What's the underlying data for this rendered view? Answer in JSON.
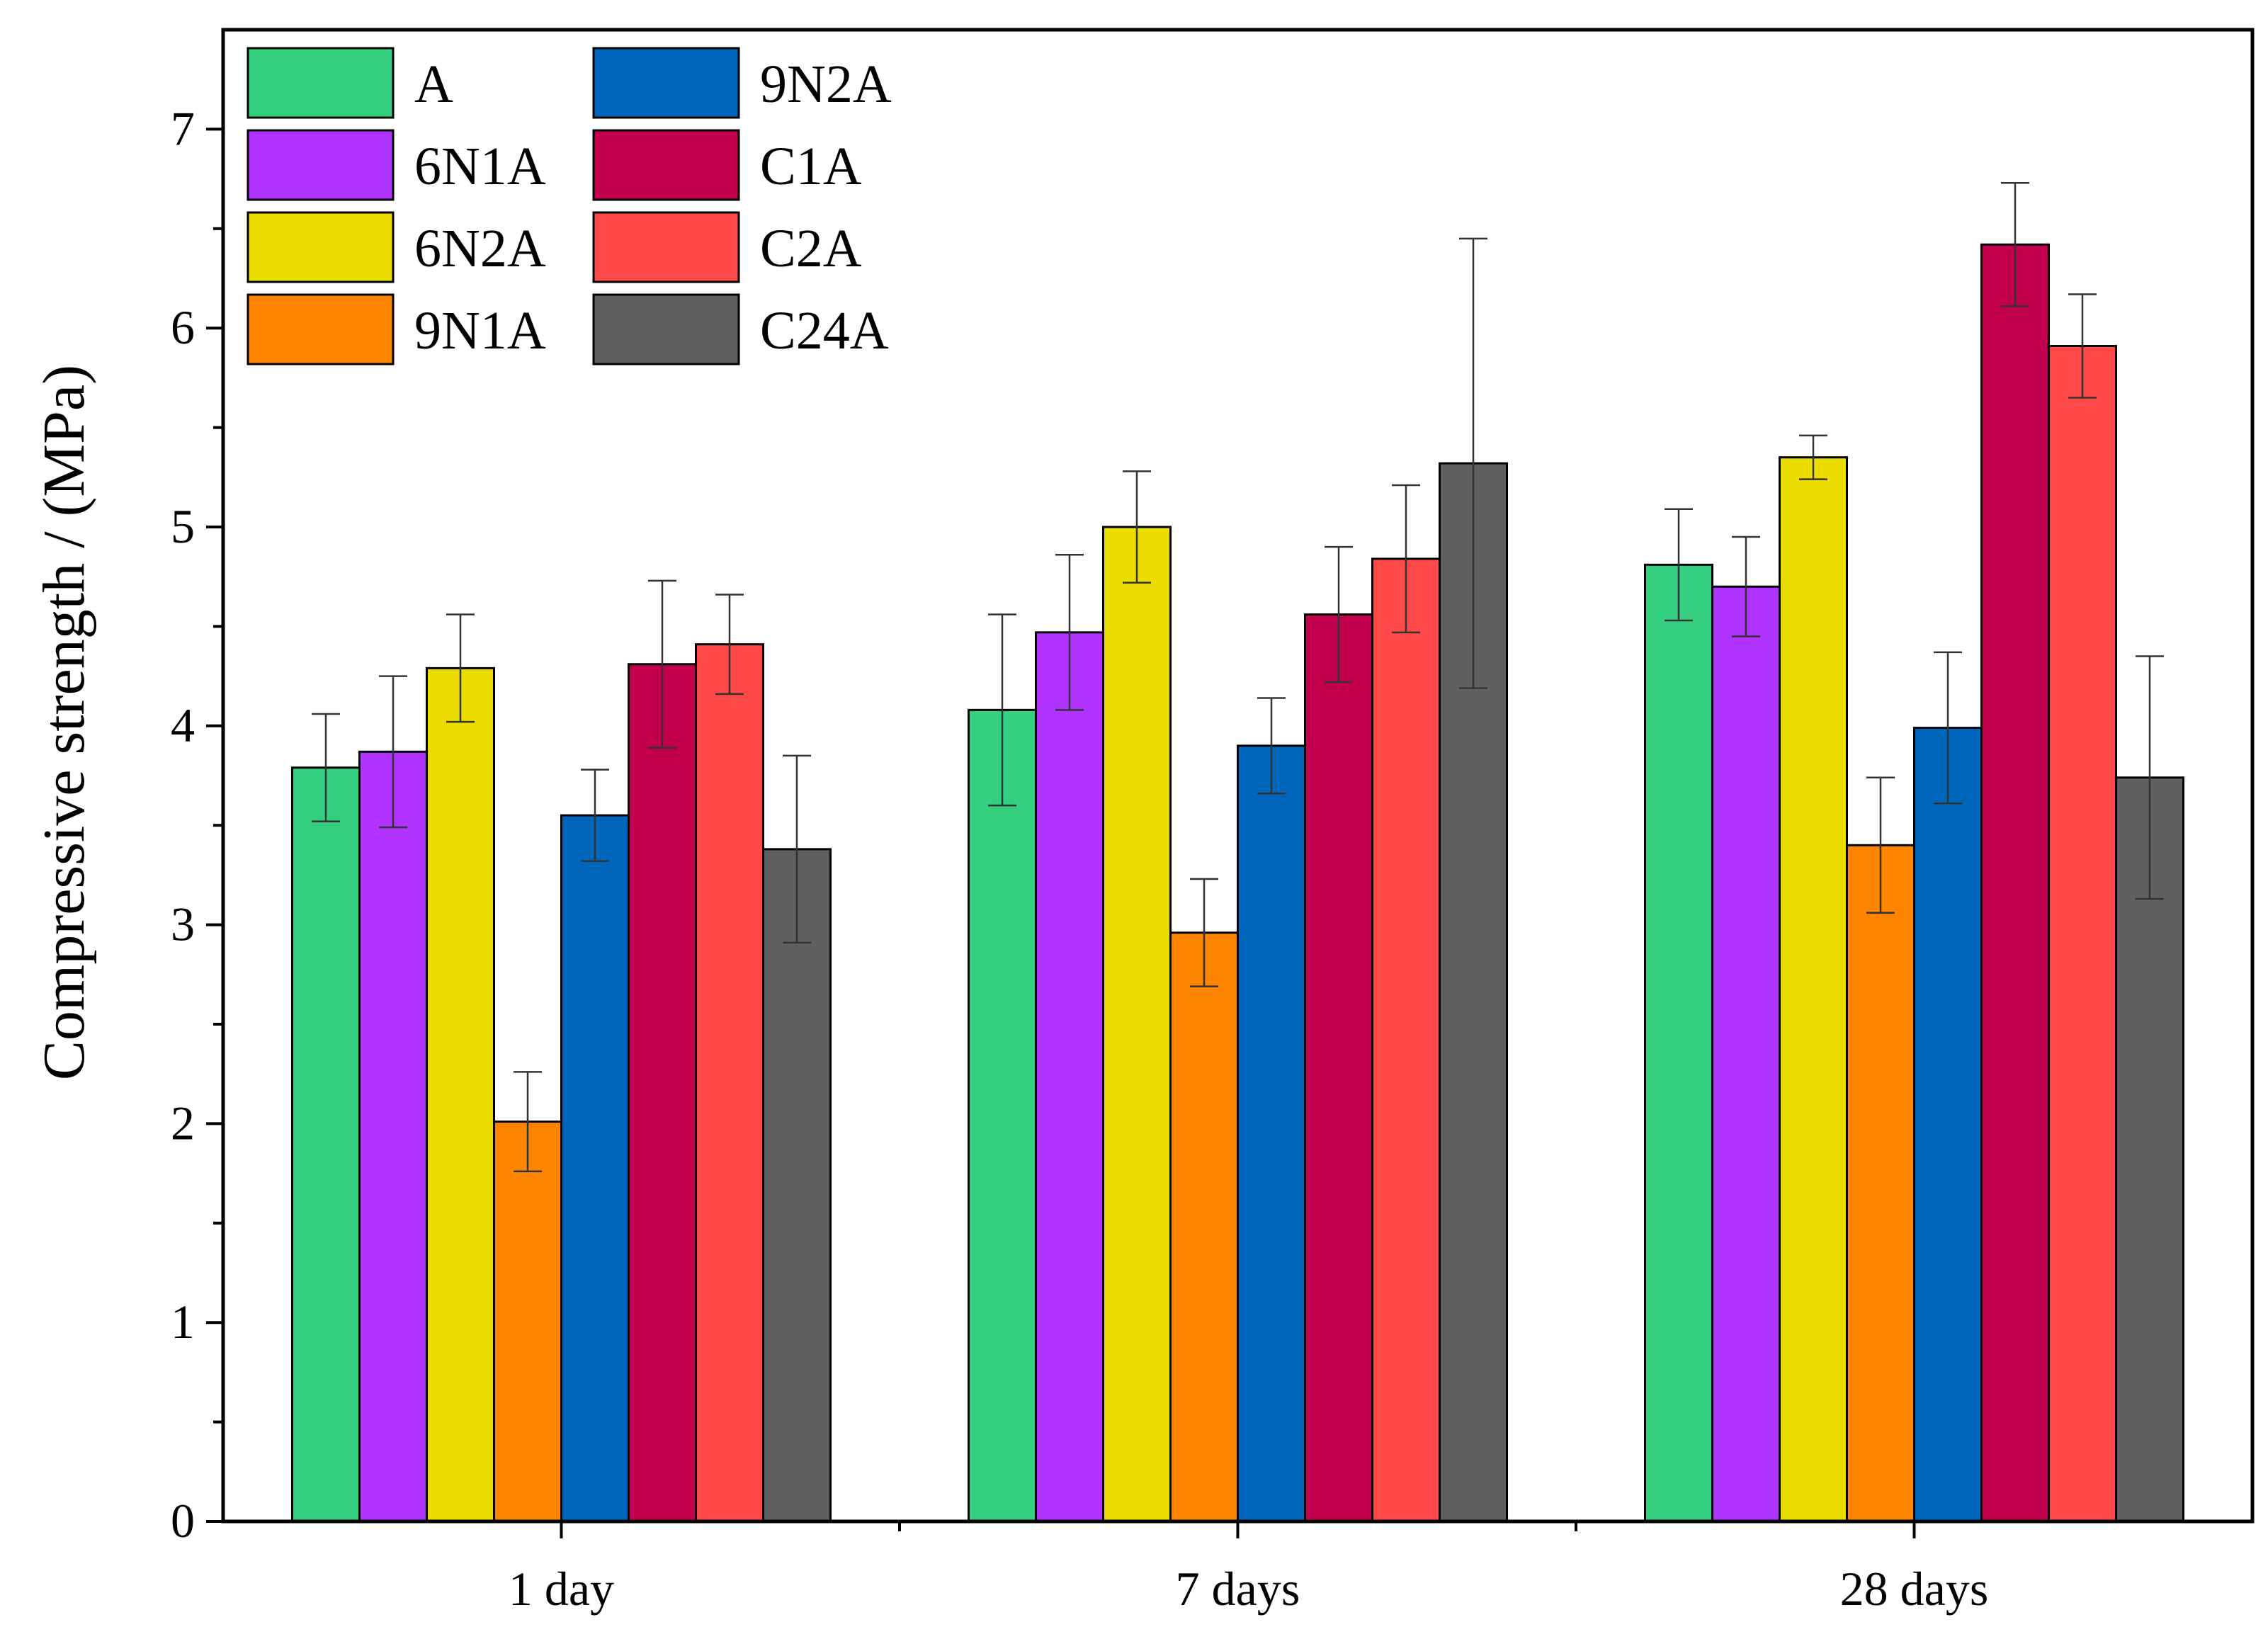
{
  "chart_data": {
    "type": "bar",
    "title": "",
    "xlabel": "",
    "ylabel": "Compressive strength / (MPa)",
    "ylim": [
      0,
      7.5
    ],
    "yticks": [
      0,
      1,
      2,
      3,
      4,
      5,
      6,
      7
    ],
    "categories": [
      "1 day",
      "7 days",
      "28 days"
    ],
    "legend_position": "top-left",
    "series": [
      {
        "name": "A",
        "color": "#35D07F",
        "values": [
          3.79,
          4.08,
          4.81
        ],
        "errors": [
          0.27,
          0.48,
          0.28
        ]
      },
      {
        "name": "6N1A",
        "color": "#B133FF",
        "values": [
          3.87,
          4.47,
          4.7
        ],
        "errors": [
          0.38,
          0.39,
          0.25
        ]
      },
      {
        "name": "6N2A",
        "color": "#ECDD00",
        "values": [
          4.29,
          5.0,
          5.35
        ],
        "errors": [
          0.27,
          0.28,
          0.11
        ]
      },
      {
        "name": "9N1A",
        "color": "#FF8500",
        "values": [
          2.01,
          2.96,
          3.4
        ],
        "errors": [
          0.25,
          0.27,
          0.34
        ]
      },
      {
        "name": "9N2A",
        "color": "#0066BB",
        "values": [
          3.55,
          3.9,
          3.99
        ],
        "errors": [
          0.23,
          0.24,
          0.38
        ]
      },
      {
        "name": "C1A",
        "color": "#C2004D",
        "values": [
          4.31,
          4.56,
          6.42
        ],
        "errors": [
          0.42,
          0.34,
          0.31
        ]
      },
      {
        "name": "C2A",
        "color": "#FF4848",
        "values": [
          4.41,
          4.84,
          5.91
        ],
        "errors": [
          0.25,
          0.37,
          0.26
        ]
      },
      {
        "name": "C24A",
        "color": "#606060",
        "values": [
          3.38,
          5.32,
          3.74
        ],
        "errors": [
          0.47,
          1.13,
          0.61
        ]
      }
    ]
  }
}
